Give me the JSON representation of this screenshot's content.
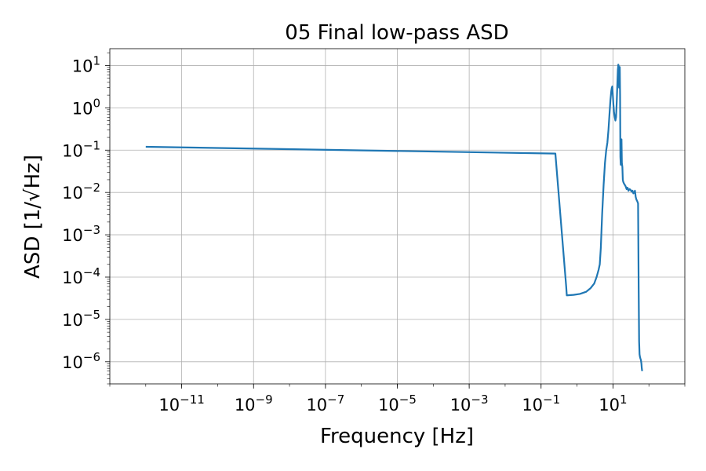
{
  "chart_data": {
    "type": "line",
    "title": "05 Final low-pass ASD",
    "xlabel": "Frequency [Hz]",
    "ylabel": "ASD [1/√Hz]",
    "xscale": "log",
    "yscale": "log",
    "xlim": [
      1e-13,
      1000
    ],
    "ylim": [
      3e-07,
      25
    ],
    "grid": true,
    "x_ticks": [
      {
        "base": "10",
        "exp": "−11",
        "value": 1e-11
      },
      {
        "base": "10",
        "exp": "−9",
        "value": 1e-09
      },
      {
        "base": "10",
        "exp": "−7",
        "value": 1e-07
      },
      {
        "base": "10",
        "exp": "−5",
        "value": 1e-05
      },
      {
        "base": "10",
        "exp": "−3",
        "value": 0.001
      },
      {
        "base": "10",
        "exp": "−1",
        "value": 0.1
      },
      {
        "base": "10",
        "exp": "1",
        "value": 10
      }
    ],
    "y_ticks": [
      {
        "base": "10",
        "exp": "1",
        "value": 10
      },
      {
        "base": "10",
        "exp": "0",
        "value": 1
      },
      {
        "base": "10",
        "exp": "−1",
        "value": 0.1
      },
      {
        "base": "10",
        "exp": "−2",
        "value": 0.01
      },
      {
        "base": "10",
        "exp": "−3",
        "value": 0.001
      },
      {
        "base": "10",
        "exp": "−4",
        "value": 0.0001
      },
      {
        "base": "10",
        "exp": "−5",
        "value": 1e-05
      },
      {
        "base": "10",
        "exp": "−6",
        "value": 1e-06
      }
    ],
    "series": [
      {
        "color": "#1f77b4",
        "x": [
          1e-12,
          0.25,
          0.5,
          0.52,
          0.8,
          1.2,
          1.8,
          2.4,
          3.0,
          3.5,
          4.0,
          4.3,
          4.6,
          5.0,
          5.5,
          6.0,
          6.5,
          7.0,
          7.5,
          8.0,
          8.5,
          9.0,
          9.3,
          9.6,
          10.0,
          10.3,
          10.7,
          11.2,
          11.7,
          12.2,
          12.8,
          13.3,
          13.7,
          14.1,
          14.5,
          14.8,
          15.1,
          15.5,
          15.8,
          16.1,
          16.5,
          16.9,
          17.3,
          17.7,
          18.3,
          18.8,
          19.3,
          19.8,
          20.5,
          21.5,
          22.5,
          24.0,
          25.5,
          27.0,
          29.0,
          31.0,
          33.0,
          35.0,
          37.0,
          39.0,
          41.0,
          43.0,
          45.0,
          47.5,
          50.0,
          52.0,
          53.5,
          55.0,
          56.5,
          58.0,
          60.0,
          62.0,
          63.5,
          65.0
        ],
        "y": [
          0.12,
          0.083,
          6e-05,
          3.7e-05,
          3.8e-05,
          4e-05,
          4.5e-05,
          5.5e-05,
          7e-05,
          0.0001,
          0.00015,
          0.0002,
          0.0005,
          0.003,
          0.015,
          0.05,
          0.1,
          0.15,
          0.3,
          0.7,
          1.5,
          2.5,
          3.0,
          3.2,
          1.8,
          1.2,
          0.8,
          0.6,
          0.5,
          0.6,
          1.5,
          4.0,
          8.0,
          10.5,
          9.5,
          3.0,
          9.0,
          9.2,
          2.0,
          0.07,
          0.045,
          0.15,
          0.18,
          0.05,
          0.04,
          0.02,
          0.018,
          0.017,
          0.016,
          0.015,
          0.014,
          0.012,
          0.013,
          0.011,
          0.012,
          0.0115,
          0.0105,
          0.011,
          0.0095,
          0.01,
          0.011,
          0.0078,
          0.0068,
          0.0062,
          0.0055,
          5e-05,
          3e-06,
          1.5e-06,
          1.3e-06,
          1.2e-06,
          1.1e-06,
          9e-07,
          7e-07,
          6e-07
        ]
      }
    ]
  }
}
